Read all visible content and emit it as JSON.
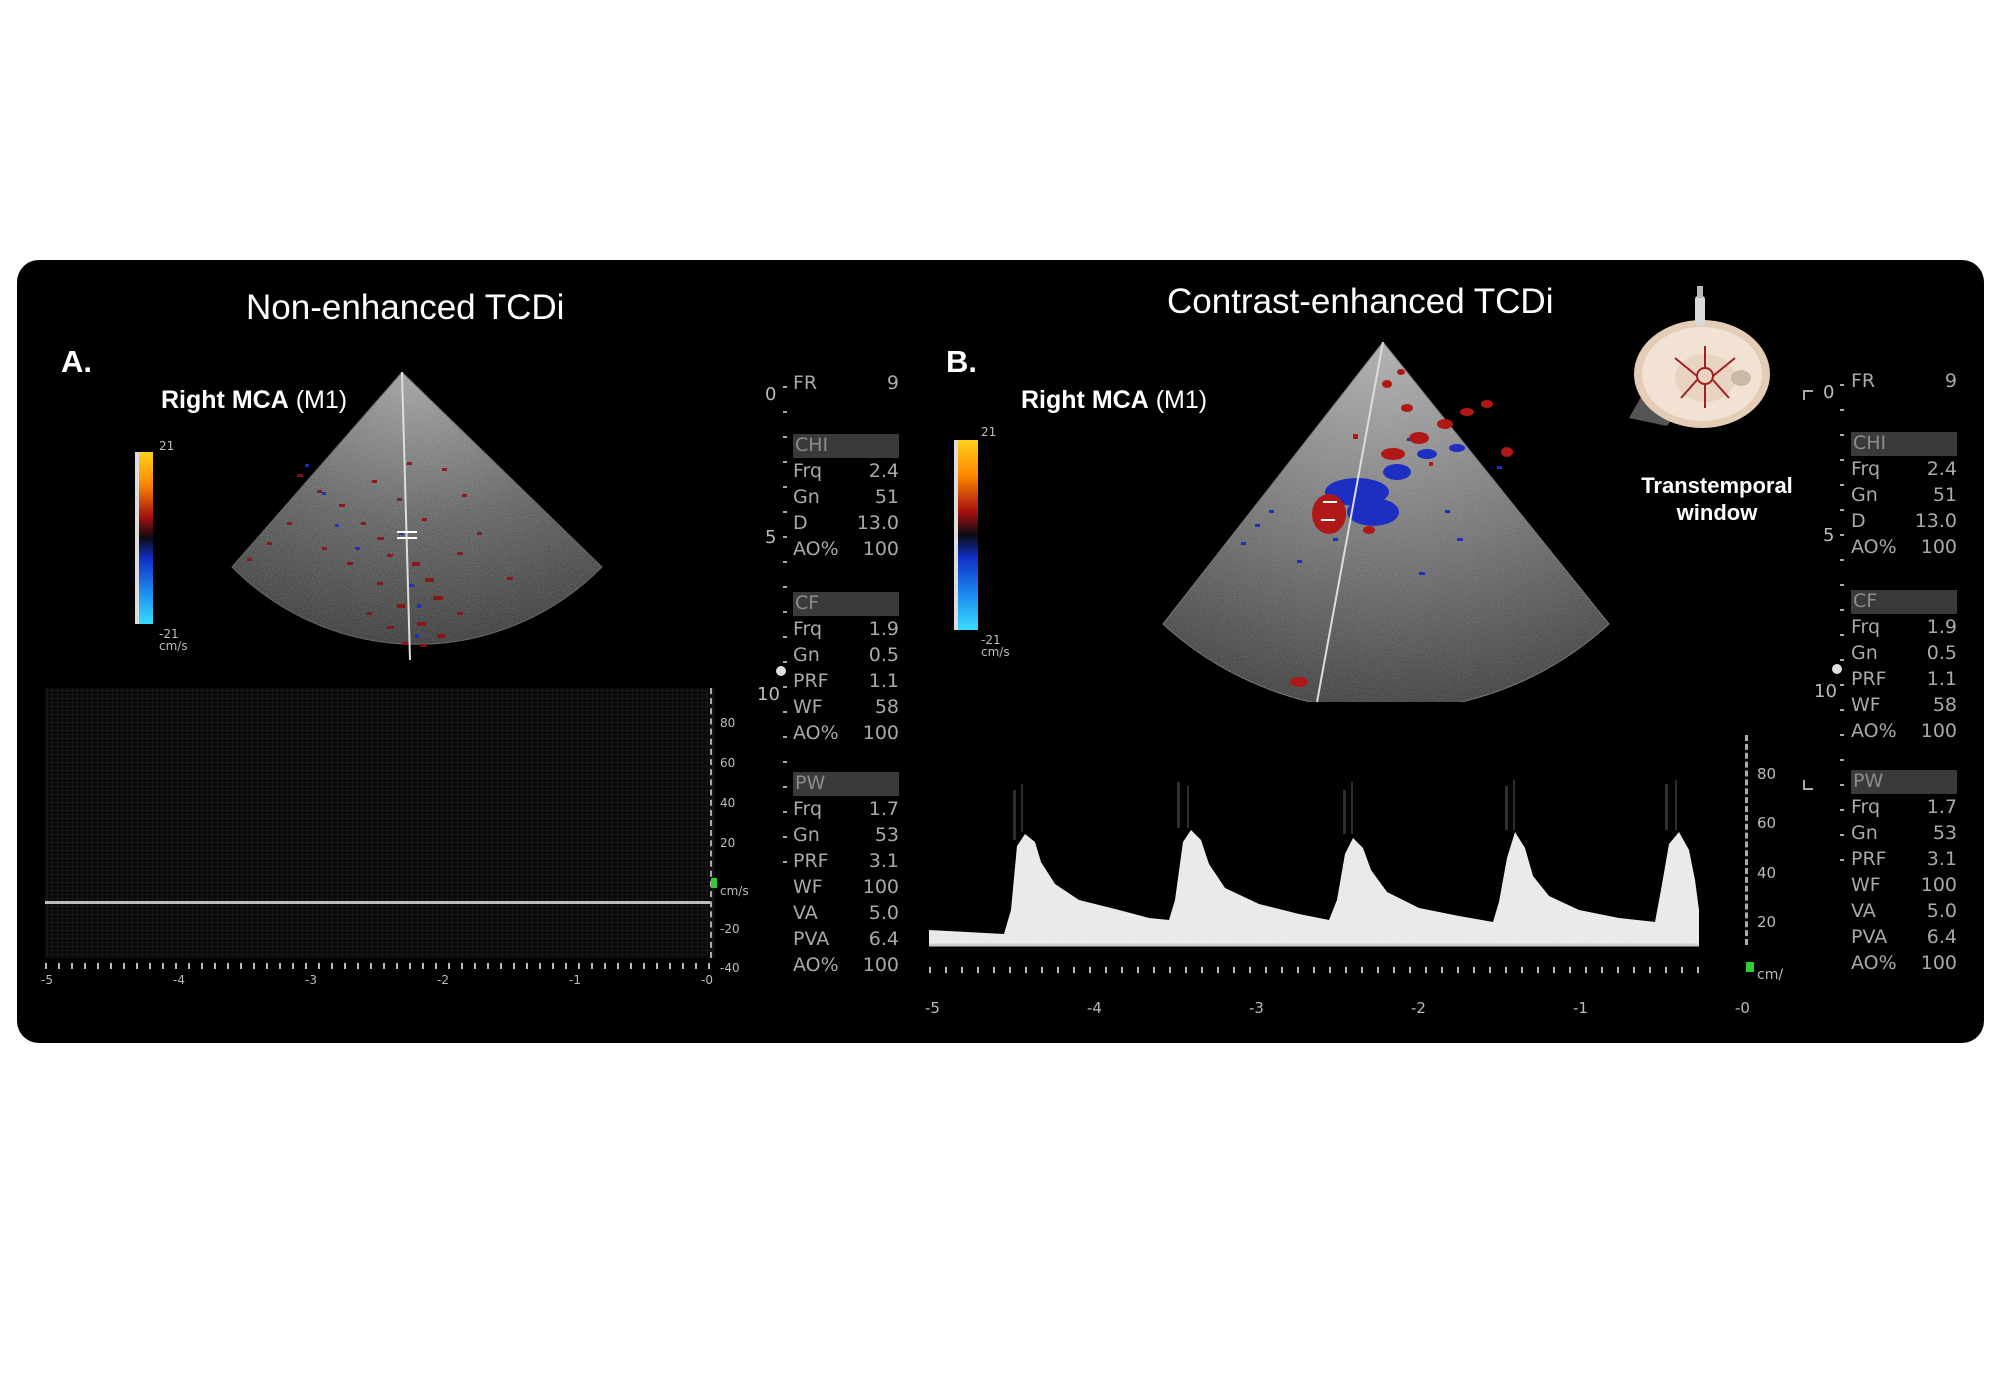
{
  "panel_a": {
    "heading": "Non-enhanced TCDi",
    "letter": "A.",
    "vessel_bold": "Right MCA",
    "vessel_segment": " (M1)",
    "color_scale": {
      "max": "21",
      "min": "-21",
      "unit": "cm/s"
    },
    "velocity_scale": {
      "ticks": [
        "80",
        "60",
        "40",
        "20",
        "-20",
        "-40"
      ],
      "unit": "cm/s"
    },
    "time_ticks": [
      "-5",
      "-4",
      "-3",
      "-2",
      "-1",
      "-0"
    ],
    "depth_marks": [
      "0",
      "5",
      "10"
    ],
    "params": [
      {
        "k": "FR",
        "v": "9"
      },
      {
        "k": "CHI",
        "v": "",
        "header": true
      },
      {
        "k": "Frq",
        "v": "2.4"
      },
      {
        "k": "Gn",
        "v": "51"
      },
      {
        "k": "D",
        "v": "13.0"
      },
      {
        "k": "AO%",
        "v": "100"
      },
      {
        "k": "CF",
        "v": "",
        "header": true
      },
      {
        "k": "Frq",
        "v": "1.9"
      },
      {
        "k": "Gn",
        "v": "0.5"
      },
      {
        "k": "PRF",
        "v": "1.1"
      },
      {
        "k": "WF",
        "v": "58"
      },
      {
        "k": "AO%",
        "v": "100"
      },
      {
        "k": "PW",
        "v": "",
        "header": true
      },
      {
        "k": "Frq",
        "v": "1.7"
      },
      {
        "k": "Gn",
        "v": "53"
      },
      {
        "k": "PRF",
        "v": "3.1"
      },
      {
        "k": "WF",
        "v": "100"
      },
      {
        "k": "VA",
        "v": "5.0"
      },
      {
        "k": "PVA",
        "v": "6.4"
      },
      {
        "k": "AO%",
        "v": "100"
      }
    ]
  },
  "panel_b": {
    "heading": "Contrast-enhanced TCDi",
    "letter": "B.",
    "vessel_bold": "Right MCA",
    "vessel_segment": " (M1)",
    "color_scale": {
      "max": "21",
      "min": "-21",
      "unit": "cm/s"
    },
    "velocity_scale": {
      "ticks": [
        "80",
        "60",
        "40",
        "20"
      ],
      "unit": "cm/"
    },
    "time_ticks": [
      "-5",
      "-4",
      "-3",
      "-2",
      "-1",
      "-0"
    ],
    "depth_marks": [
      "0",
      "5",
      "10"
    ],
    "window_label_line1": "Transtemporal",
    "window_label_line2": "window",
    "params": [
      {
        "k": "FR",
        "v": "9"
      },
      {
        "k": "CHI",
        "v": "",
        "header": true
      },
      {
        "k": "Frq",
        "v": "2.4"
      },
      {
        "k": "Gn",
        "v": "51"
      },
      {
        "k": "D",
        "v": "13.0"
      },
      {
        "k": "AO%",
        "v": "100"
      },
      {
        "k": "CF",
        "v": "",
        "header": true
      },
      {
        "k": "Frq",
        "v": "1.9"
      },
      {
        "k": "Gn",
        "v": "0.5"
      },
      {
        "k": "PRF",
        "v": "1.1"
      },
      {
        "k": "WF",
        "v": "58"
      },
      {
        "k": "AO%",
        "v": "100"
      },
      {
        "k": "PW",
        "v": "",
        "header": true
      },
      {
        "k": "Frq",
        "v": "1.7"
      },
      {
        "k": "Gn",
        "v": "53"
      },
      {
        "k": "PRF",
        "v": "3.1"
      },
      {
        "k": "WF",
        "v": "100"
      },
      {
        "k": "VA",
        "v": "5.0"
      },
      {
        "k": "PVA",
        "v": "6.4"
      },
      {
        "k": "AO%",
        "v": "100"
      }
    ]
  },
  "colors": {
    "panel_background": "#000000",
    "page_background": "#ffffff",
    "doppler_red": "#b01818",
    "doppler_blue": "#1a2fd0",
    "scale_green": "#33cc33"
  }
}
